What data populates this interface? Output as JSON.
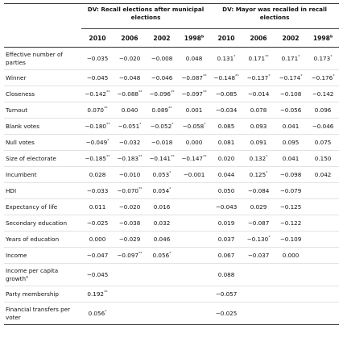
{
  "header": {
    "group1": "DV: Recall elections after municipal elections",
    "group2": "DV: Mayor was recalled in recall elections",
    "years": [
      "2010",
      "2006",
      "2002",
      "1998"
    ],
    "year_marks": [
      "",
      "",
      "",
      "b"
    ]
  },
  "rows": [
    {
      "label": "Effective number of parties",
      "tall": true,
      "cells": [
        [
          "-0.035",
          ""
        ],
        [
          "-0.020",
          ""
        ],
        [
          "-0.008",
          ""
        ],
        [
          "0.048",
          ""
        ],
        [
          "0.131",
          "*"
        ],
        [
          "0.171",
          "**"
        ],
        [
          "0.171",
          "*"
        ],
        [
          "0.173",
          "*"
        ]
      ]
    },
    {
      "label": "Winner",
      "cells": [
        [
          "-0.045",
          ""
        ],
        [
          "-0.048",
          ""
        ],
        [
          "-0.046",
          ""
        ],
        [
          "-0.087",
          "**"
        ],
        [
          "-0.148",
          "**"
        ],
        [
          "-0.137",
          "*"
        ],
        [
          "-0.174",
          "*"
        ],
        [
          "-0.176",
          "*"
        ]
      ]
    },
    {
      "label": "Closeness",
      "cells": [
        [
          "-0.142",
          "**"
        ],
        [
          "-0.088",
          "**"
        ],
        [
          "-0.096",
          "**"
        ],
        [
          "-0.097",
          "**"
        ],
        [
          "-0.085",
          ""
        ],
        [
          "-0.014",
          ""
        ],
        [
          "-0.108",
          ""
        ],
        [
          "-0.142",
          ""
        ]
      ]
    },
    {
      "label": "Turnout",
      "cells": [
        [
          "0.070",
          "**"
        ],
        [
          "0.040",
          ""
        ],
        [
          "0.089",
          "**"
        ],
        [
          "0.001",
          ""
        ],
        [
          "-0.034",
          ""
        ],
        [
          "0.078",
          ""
        ],
        [
          "-0.056",
          ""
        ],
        [
          "0.096",
          ""
        ]
      ]
    },
    {
      "label": "Blank votes",
      "cells": [
        [
          "-0.180",
          "**"
        ],
        [
          "-0.051",
          "*"
        ],
        [
          "-0.052",
          "*"
        ],
        [
          "-0.058",
          "*"
        ],
        [
          "0.085",
          ""
        ],
        [
          "0.093",
          ""
        ],
        [
          "0.041",
          ""
        ],
        [
          "-0.046",
          ""
        ]
      ]
    },
    {
      "label": "Null votes",
      "cells": [
        [
          "-0.049",
          "*"
        ],
        [
          "-0.032",
          ""
        ],
        [
          "-0.018",
          ""
        ],
        [
          "0.000",
          ""
        ],
        [
          "0.081",
          ""
        ],
        [
          "0.091",
          ""
        ],
        [
          "0.095",
          ""
        ],
        [
          "0.075",
          ""
        ]
      ]
    },
    {
      "label": "Size of electorate",
      "cells": [
        [
          "-0.185",
          "**"
        ],
        [
          "-0.183",
          "**"
        ],
        [
          "-0.141",
          "**"
        ],
        [
          "-0.147",
          "**"
        ],
        [
          "0.020",
          ""
        ],
        [
          "0.132",
          "*"
        ],
        [
          "0.041",
          ""
        ],
        [
          "0.150",
          ""
        ]
      ]
    },
    {
      "label": "Incumbent",
      "cells": [
        [
          "0.028",
          ""
        ],
        [
          "-0.010",
          ""
        ],
        [
          "0.053",
          "*"
        ],
        [
          "-0.001",
          ""
        ],
        [
          "0.044",
          ""
        ],
        [
          "0.125",
          "*"
        ],
        [
          "-0.098",
          ""
        ],
        [
          "0.042",
          ""
        ]
      ]
    },
    {
      "label": "HDI",
      "cells": [
        [
          "-0.033",
          ""
        ],
        [
          "-0.070",
          "**"
        ],
        [
          "0.054",
          "*"
        ],
        [
          "",
          ""
        ],
        [
          "0.050",
          ""
        ],
        [
          "-0.084",
          ""
        ],
        [
          "-0.079",
          ""
        ],
        [
          "",
          ""
        ]
      ]
    },
    {
      "label": "Expectancy of life",
      "cells": [
        [
          "0.011",
          ""
        ],
        [
          "-0.020",
          ""
        ],
        [
          "0.016",
          ""
        ],
        [
          "",
          ""
        ],
        [
          "-0.043",
          ""
        ],
        [
          "0.029",
          ""
        ],
        [
          "-0.125",
          ""
        ],
        [
          "",
          ""
        ]
      ]
    },
    {
      "label": "Secondary education",
      "cells": [
        [
          "-0.025",
          ""
        ],
        [
          "-0.038",
          ""
        ],
        [
          "0.032",
          ""
        ],
        [
          "",
          ""
        ],
        [
          "0.019",
          ""
        ],
        [
          "-0.087",
          ""
        ],
        [
          "-0.122",
          ""
        ],
        [
          "",
          ""
        ]
      ]
    },
    {
      "label": "Years of education",
      "cells": [
        [
          "0.000",
          ""
        ],
        [
          "-0.029",
          ""
        ],
        [
          "0.046",
          ""
        ],
        [
          "",
          ""
        ],
        [
          "0.037",
          ""
        ],
        [
          "-0.130",
          "*"
        ],
        [
          "-0.109",
          ""
        ],
        [
          "",
          ""
        ]
      ]
    },
    {
      "label": "Income",
      "cells": [
        [
          "-0.047",
          ""
        ],
        [
          "-0.097",
          "**"
        ],
        [
          "0.056",
          "*"
        ],
        [
          "",
          ""
        ],
        [
          "0.067",
          ""
        ],
        [
          "-0.037",
          ""
        ],
        [
          "0.000",
          ""
        ],
        [
          "",
          ""
        ]
      ]
    },
    {
      "label": "Income per capita growth",
      "label_mark": "a",
      "tall": true,
      "cells": [
        [
          "-0.045",
          ""
        ],
        [
          "",
          ""
        ],
        [
          "",
          ""
        ],
        [
          "",
          ""
        ],
        [
          "0.088",
          ""
        ],
        [
          "",
          ""
        ],
        [
          "",
          ""
        ],
        [
          "",
          ""
        ]
      ]
    },
    {
      "label": "Party membership",
      "cells": [
        [
          "0.192",
          "**"
        ],
        [
          "",
          ""
        ],
        [
          "",
          ""
        ],
        [
          "",
          ""
        ],
        [
          "-0.057",
          ""
        ],
        [
          "",
          ""
        ],
        [
          "",
          ""
        ],
        [
          "",
          ""
        ]
      ]
    },
    {
      "label": "Financial transfers per voter",
      "tall": true,
      "cells": [
        [
          "0.056",
          "*"
        ],
        [
          "",
          ""
        ],
        [
          "",
          ""
        ],
        [
          "",
          ""
        ],
        [
          "-0.025",
          ""
        ],
        [
          "",
          ""
        ],
        [
          "",
          ""
        ],
        [
          "",
          ""
        ]
      ]
    }
  ]
}
